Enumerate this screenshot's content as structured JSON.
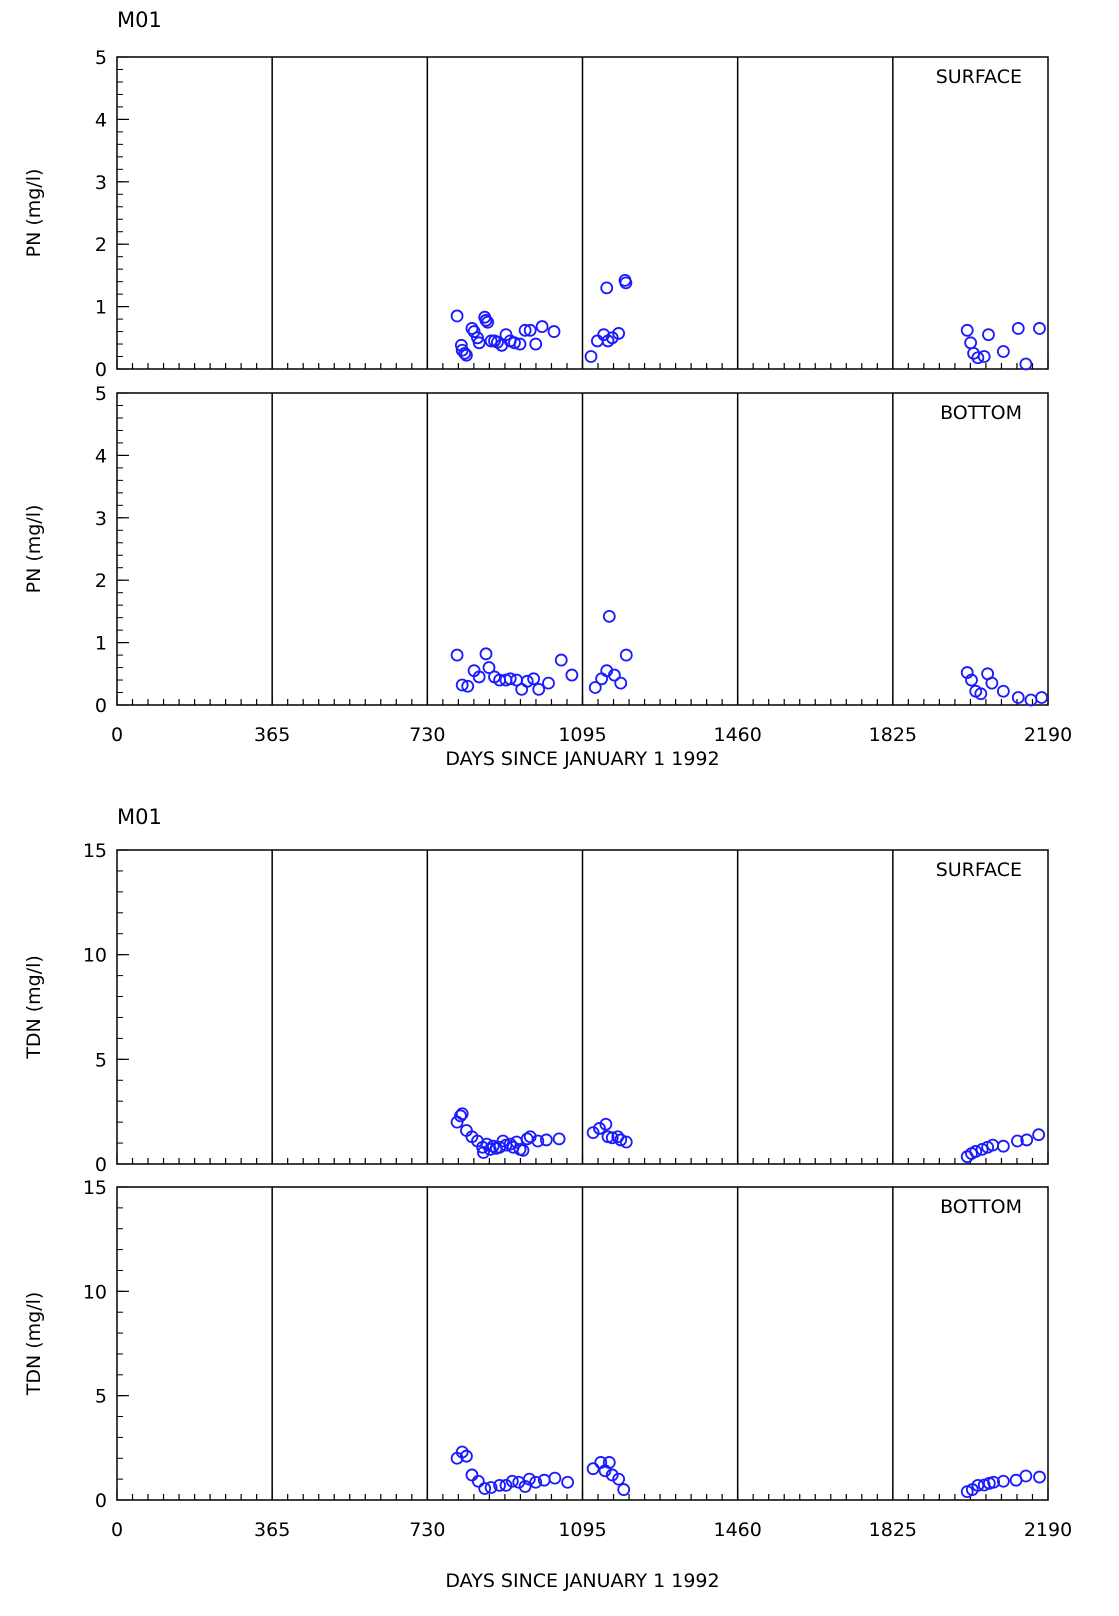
{
  "chart_data": [
    {
      "type": "scatter",
      "title": "M01",
      "xlabel": "DAYS SINCE JANUARY 1 1992",
      "xlim": [
        0,
        2190
      ],
      "xticks": [
        "0",
        "365",
        "730",
        "1095",
        "1460",
        "1825",
        "2190"
      ],
      "marker_color": "#1a1aff",
      "panels": [
        {
          "label": "SURFACE",
          "ylabel": "PN (mg/l)",
          "ylim": [
            0,
            5
          ],
          "yticks": [
            "0",
            "1",
            "2",
            "3",
            "4",
            "5"
          ],
          "points": [
            [
              800,
              0.85
            ],
            [
              810,
              0.38
            ],
            [
              812,
              0.3
            ],
            [
              818,
              0.25
            ],
            [
              822,
              0.22
            ],
            [
              835,
              0.65
            ],
            [
              840,
              0.6
            ],
            [
              848,
              0.5
            ],
            [
              852,
              0.42
            ],
            [
              865,
              0.83
            ],
            [
              868,
              0.78
            ],
            [
              872,
              0.75
            ],
            [
              880,
              0.45
            ],
            [
              888,
              0.45
            ],
            [
              895,
              0.43
            ],
            [
              905,
              0.38
            ],
            [
              915,
              0.55
            ],
            [
              925,
              0.45
            ],
            [
              935,
              0.42
            ],
            [
              948,
              0.4
            ],
            [
              960,
              0.62
            ],
            [
              972,
              0.62
            ],
            [
              985,
              0.4
            ],
            [
              1000,
              0.68
            ],
            [
              1028,
              0.6
            ],
            [
              1115,
              0.2
            ],
            [
              1130,
              0.45
            ],
            [
              1145,
              0.55
            ],
            [
              1152,
              1.3
            ],
            [
              1155,
              0.45
            ],
            [
              1165,
              0.5
            ],
            [
              1180,
              0.57
            ],
            [
              1195,
              1.42
            ],
            [
              1197,
              1.38
            ],
            [
              2000,
              0.62
            ],
            [
              2008,
              0.42
            ],
            [
              2015,
              0.25
            ],
            [
              2025,
              0.18
            ],
            [
              2040,
              0.2
            ],
            [
              2050,
              0.55
            ],
            [
              2085,
              0.28
            ],
            [
              2120,
              0.65
            ],
            [
              2138,
              0.08
            ],
            [
              2170,
              0.65
            ]
          ]
        },
        {
          "label": "BOTTOM",
          "ylabel": "PN (mg/l)",
          "ylim": [
            0,
            5
          ],
          "yticks": [
            "0",
            "1",
            "2",
            "3",
            "4",
            "5"
          ],
          "points": [
            [
              800,
              0.8
            ],
            [
              812,
              0.32
            ],
            [
              825,
              0.3
            ],
            [
              840,
              0.55
            ],
            [
              852,
              0.45
            ],
            [
              868,
              0.82
            ],
            [
              875,
              0.6
            ],
            [
              888,
              0.45
            ],
            [
              900,
              0.4
            ],
            [
              915,
              0.4
            ],
            [
              925,
              0.42
            ],
            [
              940,
              0.4
            ],
            [
              952,
              0.25
            ],
            [
              965,
              0.38
            ],
            [
              980,
              0.42
            ],
            [
              992,
              0.25
            ],
            [
              1015,
              0.35
            ],
            [
              1045,
              0.72
            ],
            [
              1070,
              0.48
            ],
            [
              1125,
              0.28
            ],
            [
              1140,
              0.42
            ],
            [
              1152,
              0.55
            ],
            [
              1158,
              1.42
            ],
            [
              1170,
              0.48
            ],
            [
              1185,
              0.35
            ],
            [
              1198,
              0.8
            ],
            [
              2000,
              0.52
            ],
            [
              2010,
              0.4
            ],
            [
              2020,
              0.22
            ],
            [
              2032,
              0.18
            ],
            [
              2048,
              0.5
            ],
            [
              2058,
              0.35
            ],
            [
              2085,
              0.22
            ],
            [
              2120,
              0.12
            ],
            [
              2150,
              0.08
            ],
            [
              2175,
              0.12
            ]
          ]
        },
        {
          "label": "SURFACE",
          "ylabel": "TDN (mg/l)",
          "ylim": [
            0,
            15
          ],
          "yticks": [
            "0",
            "5",
            "10",
            "15"
          ],
          "points": [
            [
              800,
              2.0
            ],
            [
              808,
              2.3
            ],
            [
              812,
              2.4
            ],
            [
              822,
              1.6
            ],
            [
              835,
              1.3
            ],
            [
              848,
              1.1
            ],
            [
              860,
              0.8
            ],
            [
              862,
              0.55
            ],
            [
              870,
              0.95
            ],
            [
              878,
              0.7
            ],
            [
              885,
              0.85
            ],
            [
              892,
              0.75
            ],
            [
              900,
              0.8
            ],
            [
              908,
              1.1
            ],
            [
              915,
              0.9
            ],
            [
              925,
              0.95
            ],
            [
              932,
              0.8
            ],
            [
              940,
              1.05
            ],
            [
              948,
              0.7
            ],
            [
              955,
              0.65
            ],
            [
              965,
              1.2
            ],
            [
              972,
              1.3
            ],
            [
              990,
              1.1
            ],
            [
              1010,
              1.15
            ],
            [
              1040,
              1.2
            ],
            [
              1120,
              1.5
            ],
            [
              1135,
              1.7
            ],
            [
              1150,
              1.9
            ],
            [
              1155,
              1.3
            ],
            [
              1165,
              1.25
            ],
            [
              1178,
              1.3
            ],
            [
              1185,
              1.15
            ],
            [
              1198,
              1.05
            ],
            [
              2000,
              0.35
            ],
            [
              2010,
              0.5
            ],
            [
              2020,
              0.6
            ],
            [
              2035,
              0.7
            ],
            [
              2048,
              0.8
            ],
            [
              2060,
              0.9
            ],
            [
              2085,
              0.85
            ],
            [
              2118,
              1.1
            ],
            [
              2140,
              1.15
            ],
            [
              2168,
              1.4
            ]
          ]
        },
        {
          "label": "BOTTOM",
          "ylabel": "TDN (mg/l)",
          "ylim": [
            0,
            15
          ],
          "yticks": [
            "0",
            "5",
            "10",
            "15"
          ],
          "points": [
            [
              800,
              2.0
            ],
            [
              812,
              2.3
            ],
            [
              822,
              2.1
            ],
            [
              835,
              1.2
            ],
            [
              850,
              0.9
            ],
            [
              865,
              0.55
            ],
            [
              880,
              0.6
            ],
            [
              900,
              0.7
            ],
            [
              915,
              0.7
            ],
            [
              930,
              0.9
            ],
            [
              945,
              0.85
            ],
            [
              960,
              0.65
            ],
            [
              970,
              1.0
            ],
            [
              985,
              0.85
            ],
            [
              1005,
              0.95
            ],
            [
              1030,
              1.05
            ],
            [
              1060,
              0.85
            ],
            [
              1120,
              1.5
            ],
            [
              1138,
              1.8
            ],
            [
              1148,
              1.4
            ],
            [
              1158,
              1.8
            ],
            [
              1165,
              1.2
            ],
            [
              1180,
              1.0
            ],
            [
              1192,
              0.5
            ],
            [
              2000,
              0.4
            ],
            [
              2012,
              0.5
            ],
            [
              2025,
              0.7
            ],
            [
              2040,
              0.72
            ],
            [
              2052,
              0.8
            ],
            [
              2062,
              0.85
            ],
            [
              2085,
              0.9
            ],
            [
              2115,
              0.95
            ],
            [
              2138,
              1.15
            ],
            [
              2170,
              1.1
            ]
          ]
        }
      ]
    }
  ]
}
